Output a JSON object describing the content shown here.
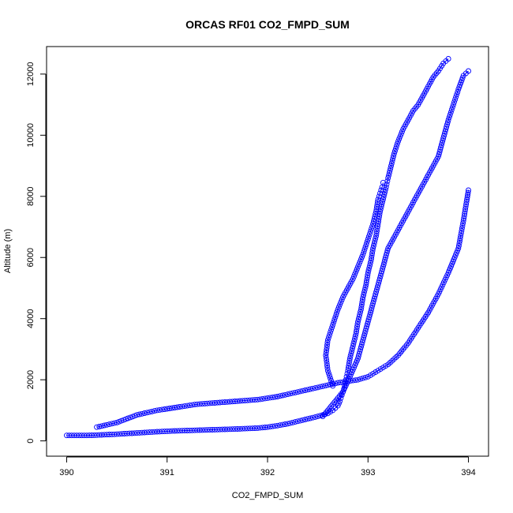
{
  "chart_data": {
    "type": "scatter",
    "title": "ORCAS RF01 CO2_FMPD_SUM",
    "xlabel": "CO2_FMPD_SUM",
    "ylabel": "Altitude (m)",
    "xlim": [
      389.8,
      394.2
    ],
    "ylim": [
      -500,
      12900
    ],
    "xticks": [
      "390",
      "391",
      "392",
      "393",
      "394"
    ],
    "xtick_values": [
      390,
      391,
      392,
      393,
      394
    ],
    "yticks": [
      "0",
      "2000",
      "4000",
      "6000",
      "8000",
      "10000",
      "12000"
    ],
    "ytick_values": [
      0,
      2000,
      4000,
      6000,
      8000,
      10000,
      12000
    ],
    "grid": false,
    "legend": "none",
    "marker": "open-circle",
    "connected_line": true,
    "series_color": "#0000ff",
    "series": [
      {
        "x": [
          390.0,
          390.2,
          390.3,
          390.5,
          390.7,
          390.9,
          391.1,
          391.3,
          391.5,
          391.7,
          391.9,
          392.0,
          392.1,
          392.2,
          392.3,
          392.4,
          392.5,
          392.6,
          392.65,
          392.7,
          392.72,
          392.74,
          392.76,
          392.78,
          392.8,
          392.82,
          392.85,
          392.88,
          392.9,
          392.93,
          392.95,
          392.98,
          393.0,
          393.03,
          393.05,
          393.08,
          393.1,
          393.12,
          393.15,
          393.18,
          393.2,
          393.23,
          393.26,
          393.3,
          393.35,
          393.4,
          393.45,
          393.5,
          393.55,
          393.6,
          393.65,
          393.7,
          393.75,
          393.8
        ],
        "y": [
          180,
          180,
          190,
          220,
          260,
          300,
          330,
          350,
          370,
          390,
          420,
          450,
          500,
          560,
          640,
          720,
          800,
          900,
          1000,
          1150,
          1300,
          1500,
          1700,
          2000,
          2300,
          2700,
          3100,
          3500,
          3900,
          4300,
          4700,
          5100,
          5500,
          5900,
          6300,
          6700,
          7100,
          7500,
          7900,
          8300,
          8600,
          9000,
          9400,
          9800,
          10200,
          10500,
          10800,
          11000,
          11300,
          11600,
          11900,
          12100,
          12350,
          12500
        ]
      },
      {
        "x": [
          390.3,
          390.5,
          390.7,
          390.9,
          391.1,
          391.3,
          391.5,
          391.7,
          391.9,
          392.1,
          392.3,
          392.5,
          392.7,
          392.9,
          393.0,
          393.1,
          393.2,
          393.3,
          393.4,
          393.5,
          393.6,
          393.7,
          393.8,
          393.9,
          393.95,
          394.0
        ],
        "y": [
          450,
          600,
          850,
          1000,
          1100,
          1200,
          1250,
          1300,
          1350,
          1450,
          1600,
          1750,
          1900,
          2000,
          2100,
          2300,
          2500,
          2800,
          3200,
          3700,
          4200,
          4800,
          5500,
          6300,
          7200,
          8200
        ]
      },
      {
        "x": [
          392.65,
          392.6,
          392.58,
          392.6,
          392.65,
          392.7,
          392.75,
          392.8,
          392.85,
          392.9,
          392.95,
          393.0,
          393.05,
          393.08,
          393.1,
          393.12,
          393.14,
          393.15
        ],
        "y": [
          1800,
          2300,
          2800,
          3300,
          3800,
          4300,
          4700,
          5000,
          5300,
          5700,
          6100,
          6600,
          7100,
          7500,
          7900,
          8100,
          8300,
          8450
        ]
      },
      {
        "x": [
          392.55,
          392.65,
          392.75,
          392.82,
          392.9,
          392.95,
          393.0,
          393.05,
          393.1,
          393.15,
          393.2,
          393.3,
          393.4,
          393.5,
          393.6,
          393.7,
          393.75,
          393.8,
          393.85,
          393.9,
          393.95,
          394.0
        ],
        "y": [
          800,
          1200,
          1600,
          2100,
          2700,
          3300,
          3900,
          4500,
          5100,
          5700,
          6300,
          6900,
          7500,
          8100,
          8700,
          9300,
          9900,
          10500,
          11000,
          11500,
          11950,
          12100
        ]
      }
    ]
  }
}
